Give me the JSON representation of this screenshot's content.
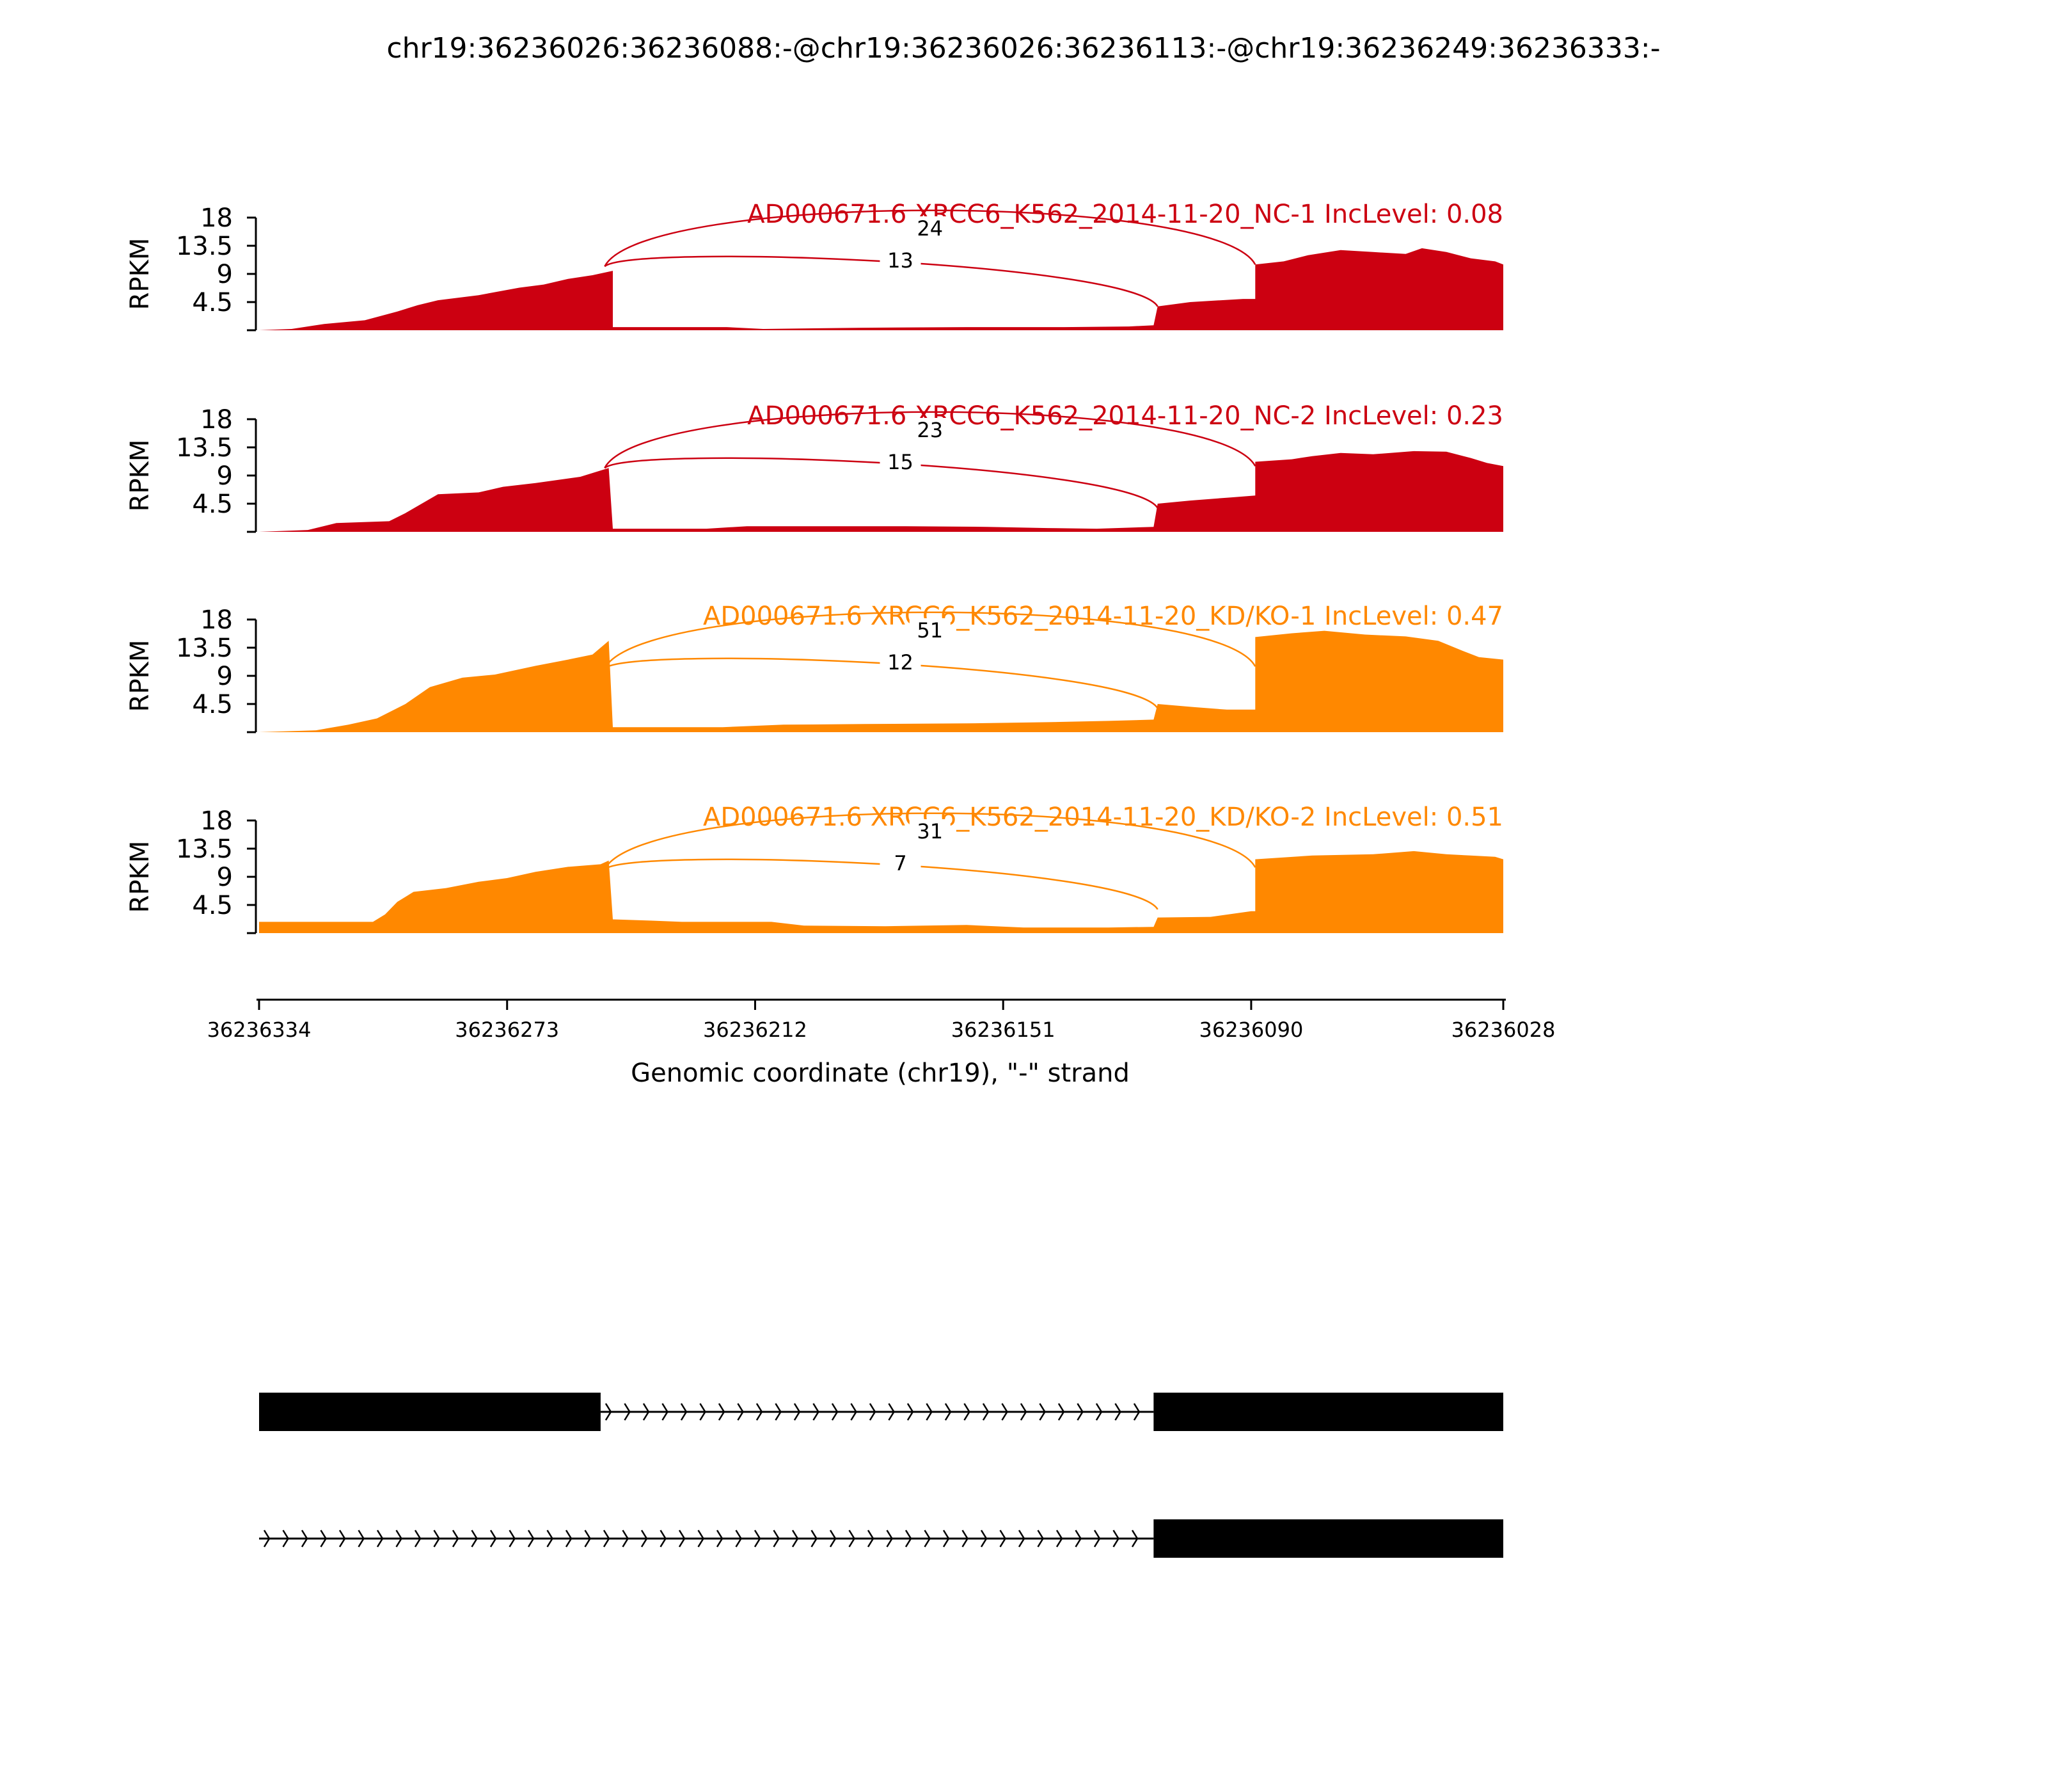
{
  "chart_data": {
    "type": "area",
    "title": "chr19:36236026:36236088:-@chr19:36236026:36236113:-@chr19:36236249:36236333:-",
    "xlabel": "Genomic coordinate (chr19), \"-\" strand",
    "ylabel": "RPKM",
    "x_ticks": [
      "36236334",
      "36236273",
      "36236212",
      "36236151",
      "36236090",
      "36236028"
    ],
    "xlim": [
      36236334,
      36236028
    ],
    "ylim": [
      0,
      18
    ],
    "y_ticks": [
      "18",
      "13.5",
      "9",
      "4.5"
    ],
    "colors": {
      "NC": "#cc0011",
      "KD": "#ff8800"
    },
    "tracks": [
      {
        "label": "AD000671.6 XRCC6_K562_2014-11-20_NC-1 IncLevel: 0.08",
        "group": "NC",
        "junctions": [
          {
            "count": "24",
            "long": true
          },
          {
            "count": "13",
            "long": false
          }
        ],
        "coverage": [
          [
            36236334,
            0
          ],
          [
            36236326,
            0.2
          ],
          [
            36236318,
            1
          ],
          [
            36236308,
            1.6
          ],
          [
            36236300,
            3
          ],
          [
            36236295,
            4
          ],
          [
            36236290,
            4.8
          ],
          [
            36236280,
            5.6
          ],
          [
            36236270,
            6.8
          ],
          [
            36236264,
            7.3
          ],
          [
            36236258,
            8.2
          ],
          [
            36236252,
            8.8
          ],
          [
            36236247,
            9.5
          ],
          [
            36236247,
            0.5
          ],
          [
            36236219,
            0.5
          ],
          [
            36236210,
            0.2
          ],
          [
            36236186,
            0.4
          ],
          [
            36236160,
            0.5
          ],
          [
            36236136,
            0.5
          ],
          [
            36236120,
            0.6
          ],
          [
            36236114,
            0.8
          ],
          [
            36236113,
            3.8
          ],
          [
            36236105,
            4.5
          ],
          [
            36236092,
            5
          ],
          [
            36236089,
            5
          ],
          [
            36236089,
            10.5
          ],
          [
            36236082,
            11
          ],
          [
            36236076,
            12
          ],
          [
            36236068,
            12.8
          ],
          [
            36236060,
            12.5
          ],
          [
            36236052,
            12.2
          ],
          [
            36236048,
            13.1
          ],
          [
            36236042,
            12.5
          ],
          [
            36236036,
            11.5
          ],
          [
            36236030,
            11
          ],
          [
            36236028,
            10.5
          ],
          [
            36236028,
            0
          ]
        ]
      },
      {
        "label": "AD000671.6 XRCC6_K562_2014-11-20_NC-2 IncLevel: 0.23",
        "group": "NC",
        "junctions": [
          {
            "count": "23",
            "long": true
          },
          {
            "count": "15",
            "long": false
          }
        ],
        "coverage": [
          [
            36236334,
            0
          ],
          [
            36236322,
            0.3
          ],
          [
            36236315,
            1.4
          ],
          [
            36236302,
            1.7
          ],
          [
            36236298,
            3
          ],
          [
            36236294,
            4.5
          ],
          [
            36236290,
            6
          ],
          [
            36236280,
            6.3
          ],
          [
            36236274,
            7.2
          ],
          [
            36236266,
            7.8
          ],
          [
            36236255,
            8.8
          ],
          [
            36236248,
            10.2
          ],
          [
            36236247,
            0.5
          ],
          [
            36236224,
            0.5
          ],
          [
            36236214,
            0.9
          ],
          [
            36236195,
            0.9
          ],
          [
            36236175,
            0.9
          ],
          [
            36236155,
            0.8
          ],
          [
            36236140,
            0.6
          ],
          [
            36236128,
            0.5
          ],
          [
            36236114,
            0.8
          ],
          [
            36236113,
            4.5
          ],
          [
            36236105,
            5
          ],
          [
            36236095,
            5.5
          ],
          [
            36236089,
            5.8
          ],
          [
            36236089,
            11.2
          ],
          [
            36236080,
            11.6
          ],
          [
            36236075,
            12.1
          ],
          [
            36236068,
            12.6
          ],
          [
            36236060,
            12.4
          ],
          [
            36236050,
            12.9
          ],
          [
            36236042,
            12.8
          ],
          [
            36236036,
            11.8
          ],
          [
            36236032,
            11
          ],
          [
            36236028,
            10.5
          ],
          [
            36236028,
            0
          ]
        ]
      },
      {
        "label": "AD000671.6 XRCC6_K562_2014-11-20_KD/KO-1 IncLevel: 0.47",
        "group": "KD",
        "junctions": [
          {
            "count": "51",
            "long": true
          },
          {
            "count": "12",
            "long": false
          }
        ],
        "coverage": [
          [
            36236334,
            0
          ],
          [
            36236320,
            0.3
          ],
          [
            36236312,
            1.2
          ],
          [
            36236305,
            2.2
          ],
          [
            36236298,
            4.5
          ],
          [
            36236292,
            7.2
          ],
          [
            36236284,
            8.7
          ],
          [
            36236276,
            9.2
          ],
          [
            36236266,
            10.6
          ],
          [
            36236258,
            11.6
          ],
          [
            36236252,
            12.4
          ],
          [
            36236248,
            14.6
          ],
          [
            36236247,
            0.8
          ],
          [
            36236220,
            0.8
          ],
          [
            36236205,
            1.2
          ],
          [
            36236185,
            1.3
          ],
          [
            36236160,
            1.4
          ],
          [
            36236140,
            1.6
          ],
          [
            36236125,
            1.8
          ],
          [
            36236114,
            2
          ],
          [
            36236113,
            4.5
          ],
          [
            36236104,
            4
          ],
          [
            36236096,
            3.6
          ],
          [
            36236089,
            3.6
          ],
          [
            36236089,
            15.2
          ],
          [
            36236080,
            15.8
          ],
          [
            36236072,
            16.2
          ],
          [
            36236062,
            15.6
          ],
          [
            36236052,
            15.3
          ],
          [
            36236044,
            14.6
          ],
          [
            36236038,
            13
          ],
          [
            36236034,
            12
          ],
          [
            36236028,
            11.6
          ],
          [
            36236028,
            0
          ]
        ]
      },
      {
        "label": "AD000671.6 XRCC6_K562_2014-11-20_KD/KO-2 IncLevel: 0.51",
        "group": "KD",
        "junctions": [
          {
            "count": "31",
            "long": true
          },
          {
            "count": "7",
            "long": false
          }
        ],
        "coverage": [
          [
            36236334,
            1.8
          ],
          [
            36236306,
            1.8
          ],
          [
            36236303,
            3
          ],
          [
            36236300,
            5
          ],
          [
            36236296,
            6.6
          ],
          [
            36236288,
            7.2
          ],
          [
            36236280,
            8.2
          ],
          [
            36236273,
            8.8
          ],
          [
            36236266,
            9.8
          ],
          [
            36236258,
            10.6
          ],
          [
            36236250,
            11
          ],
          [
            36236248,
            11.6
          ],
          [
            36236247,
            2.2
          ],
          [
            36236238,
            2
          ],
          [
            36236230,
            1.8
          ],
          [
            36236208,
            1.8
          ],
          [
            36236200,
            1.2
          ],
          [
            36236180,
            1.1
          ],
          [
            36236160,
            1.3
          ],
          [
            36236146,
            0.9
          ],
          [
            36236125,
            0.9
          ],
          [
            36236114,
            1
          ],
          [
            36236113,
            2.5
          ],
          [
            36236100,
            2.6
          ],
          [
            36236090,
            3.5
          ],
          [
            36236089,
            3.5
          ],
          [
            36236089,
            11.8
          ],
          [
            36236075,
            12.4
          ],
          [
            36236060,
            12.6
          ],
          [
            36236050,
            13.1
          ],
          [
            36236042,
            12.6
          ],
          [
            36236036,
            12.4
          ],
          [
            36236030,
            12.2
          ],
          [
            36236028,
            11.8
          ],
          [
            36236028,
            0
          ]
        ]
      }
    ],
    "isoforms": [
      {
        "exons": [
          [
            36236334,
            36236250
          ],
          [
            36236114,
            36236028
          ]
        ],
        "intron": [
          36236250,
          36236114
        ]
      },
      {
        "exons": [
          [
            36236114,
            36236028
          ]
        ],
        "intron": [
          36236334,
          36236114
        ]
      }
    ]
  }
}
